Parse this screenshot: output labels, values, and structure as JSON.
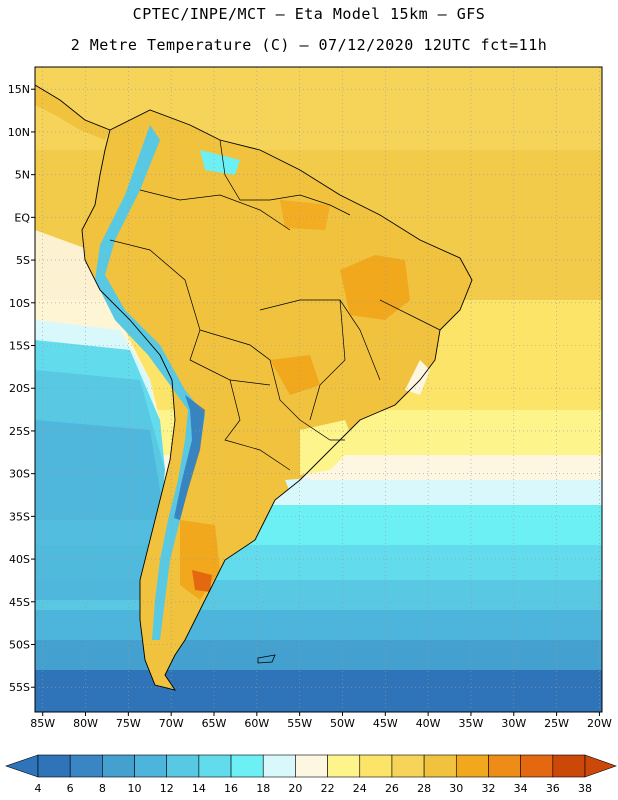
{
  "header": {
    "line1": "CPTEC/INPE/MCT –  Eta Model 15km – GFS",
    "line2": "2 Metre Temperature (C) – 07/12/2020 12UTC fct=11h"
  },
  "axes": {
    "lat_labels": [
      "15N",
      "10N",
      "5N",
      "EQ",
      "5S",
      "10S",
      "15S",
      "20S",
      "25S",
      "30S",
      "35S",
      "40S",
      "45S",
      "50S",
      "55S"
    ],
    "lon_labels": [
      "85W",
      "80W",
      "75W",
      "70W",
      "65W",
      "60W",
      "55W",
      "50W",
      "45W",
      "40W",
      "35W",
      "30W",
      "25W",
      "20W"
    ]
  },
  "colorbar": {
    "labels": [
      "4",
      "6",
      "8",
      "10",
      "12",
      "14",
      "16",
      "18",
      "20",
      "22",
      "24",
      "26",
      "28",
      "30",
      "32",
      "34",
      "36",
      "38"
    ],
    "colors": [
      "#2f73b8",
      "#3a86c4",
      "#43a0cf",
      "#4db4db",
      "#58c8e3",
      "#62dcec",
      "#6cf0f4",
      "#d8f8fc",
      "#fdf6e0",
      "#fdf48c",
      "#fbe468",
      "#f6d45a",
      "#f0c23e",
      "#f2a81c",
      "#ee8c18",
      "#e46810",
      "#cc4808"
    ],
    "under_color": "#2f73b8",
    "over_color": "#cc4808"
  },
  "chart_data": {
    "type": "heatmap",
    "title": "2 Metre Temperature (C)",
    "model": "Eta Model 15km – GFS",
    "init": "07/12/2020 12UTC",
    "forecast_hour": "fct=11h",
    "lon_range": [
      -85,
      -20
    ],
    "lat_range": [
      -58,
      17
    ],
    "units": "C",
    "levels": [
      4,
      6,
      8,
      10,
      12,
      14,
      16,
      18,
      20,
      22,
      24,
      26,
      28,
      30,
      32,
      34,
      36,
      38
    ]
  },
  "colors": {
    "ocean_warm": "#f6d45a",
    "land_warm": "#f0c23e",
    "land_hot": "#f2a81c",
    "andes_cold": "#58c8e3",
    "ocean_cold": "#2f73b8"
  }
}
